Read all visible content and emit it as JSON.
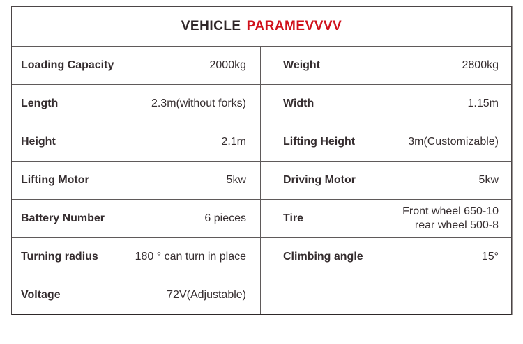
{
  "title": {
    "black": "VEHICLE",
    "red": "PARAMEVVVV"
  },
  "colors": {
    "accent_red": "#d0111b",
    "text": "#352d2f",
    "border": "#5f5a5a"
  },
  "table": {
    "rows": [
      {
        "left": {
          "label": "Loading Capacity",
          "value": "2000kg"
        },
        "right": {
          "label": "Weight",
          "value": "2800kg"
        }
      },
      {
        "left": {
          "label": "Length",
          "value": "2.3m(without forks)"
        },
        "right": {
          "label": "Width",
          "value": "1.15m"
        }
      },
      {
        "left": {
          "label": "Height",
          "value": "2.1m"
        },
        "right": {
          "label": "Lifting Height",
          "value": "3m(Customizable)"
        }
      },
      {
        "left": {
          "label": "Lifting Motor",
          "value": "5kw"
        },
        "right": {
          "label": "Driving Motor",
          "value": "5kw"
        }
      },
      {
        "left": {
          "label": "Battery Number",
          "value": "6 pieces"
        },
        "right": {
          "label": "Tire",
          "value": "Front wheel 650-10\nrear wheel 500-8"
        }
      },
      {
        "left": {
          "label": "Turning radius",
          "value": "180 ° can turn in place"
        },
        "right": {
          "label": "Climbing angle",
          "value": "15°"
        }
      },
      {
        "left": {
          "label": "Voltage",
          "value": "72V(Adjustable)"
        },
        "right": {
          "label": "",
          "value": ""
        }
      }
    ]
  }
}
